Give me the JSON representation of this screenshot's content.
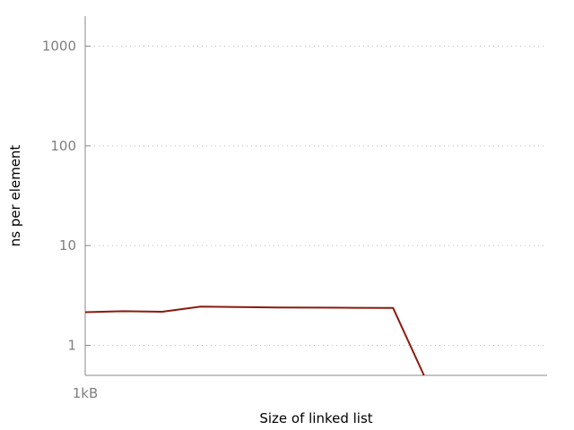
{
  "chart_data": {
    "type": "line",
    "xlabel": "Size of linked list",
    "ylabel": "ns per element",
    "y_scale": "log",
    "ylim": [
      0.5,
      2000
    ],
    "y_ticks": [
      {
        "value": 1,
        "label": "1"
      },
      {
        "value": 10,
        "label": "10"
      },
      {
        "value": 100,
        "label": "100"
      },
      {
        "value": 1000,
        "label": "1000"
      }
    ],
    "x_ticks": [
      {
        "value": 0,
        "label": "1kB"
      }
    ],
    "xlim": [
      0,
      12
    ],
    "grid": true,
    "series": [
      {
        "color": "#8b1a0e",
        "x": [
          0,
          1,
          2,
          3,
          4,
          5,
          6,
          7,
          8,
          8.8
        ],
        "y": [
          2.15,
          2.2,
          2.17,
          2.45,
          2.42,
          2.4,
          2.39,
          2.38,
          2.37,
          0.5
        ]
      }
    ]
  }
}
